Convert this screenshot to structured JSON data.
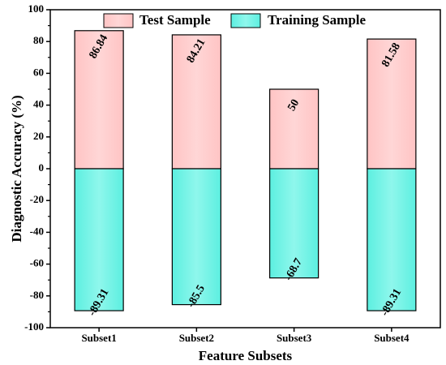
{
  "chart_data": {
    "type": "bar",
    "stacked_diverging": true,
    "title": "",
    "xlabel": "Feature Subsets",
    "ylabel": "Diagnostic Accuracy (%)",
    "ylim": [
      -100,
      100
    ],
    "yticks": [
      -100,
      -80,
      -60,
      -40,
      -20,
      0,
      20,
      40,
      60,
      80,
      100
    ],
    "grid": false,
    "legend_position": "top",
    "categories": [
      "Subset1",
      "Subset2",
      "Subset3",
      "Subset4"
    ],
    "series": [
      {
        "name": "Test Sample",
        "color": "#ffc8c8",
        "values": [
          86.84,
          84.21,
          50,
          81.58
        ],
        "labels": [
          "86.84",
          "84.21",
          "50",
          "81.58"
        ]
      },
      {
        "name": "Training Sample",
        "color": "#6ef2e4",
        "values": [
          -89.31,
          -85.5,
          -68.7,
          -89.31
        ],
        "labels": [
          "-89.31",
          "-85.5",
          "-68.7",
          "-89.31"
        ]
      }
    ]
  }
}
